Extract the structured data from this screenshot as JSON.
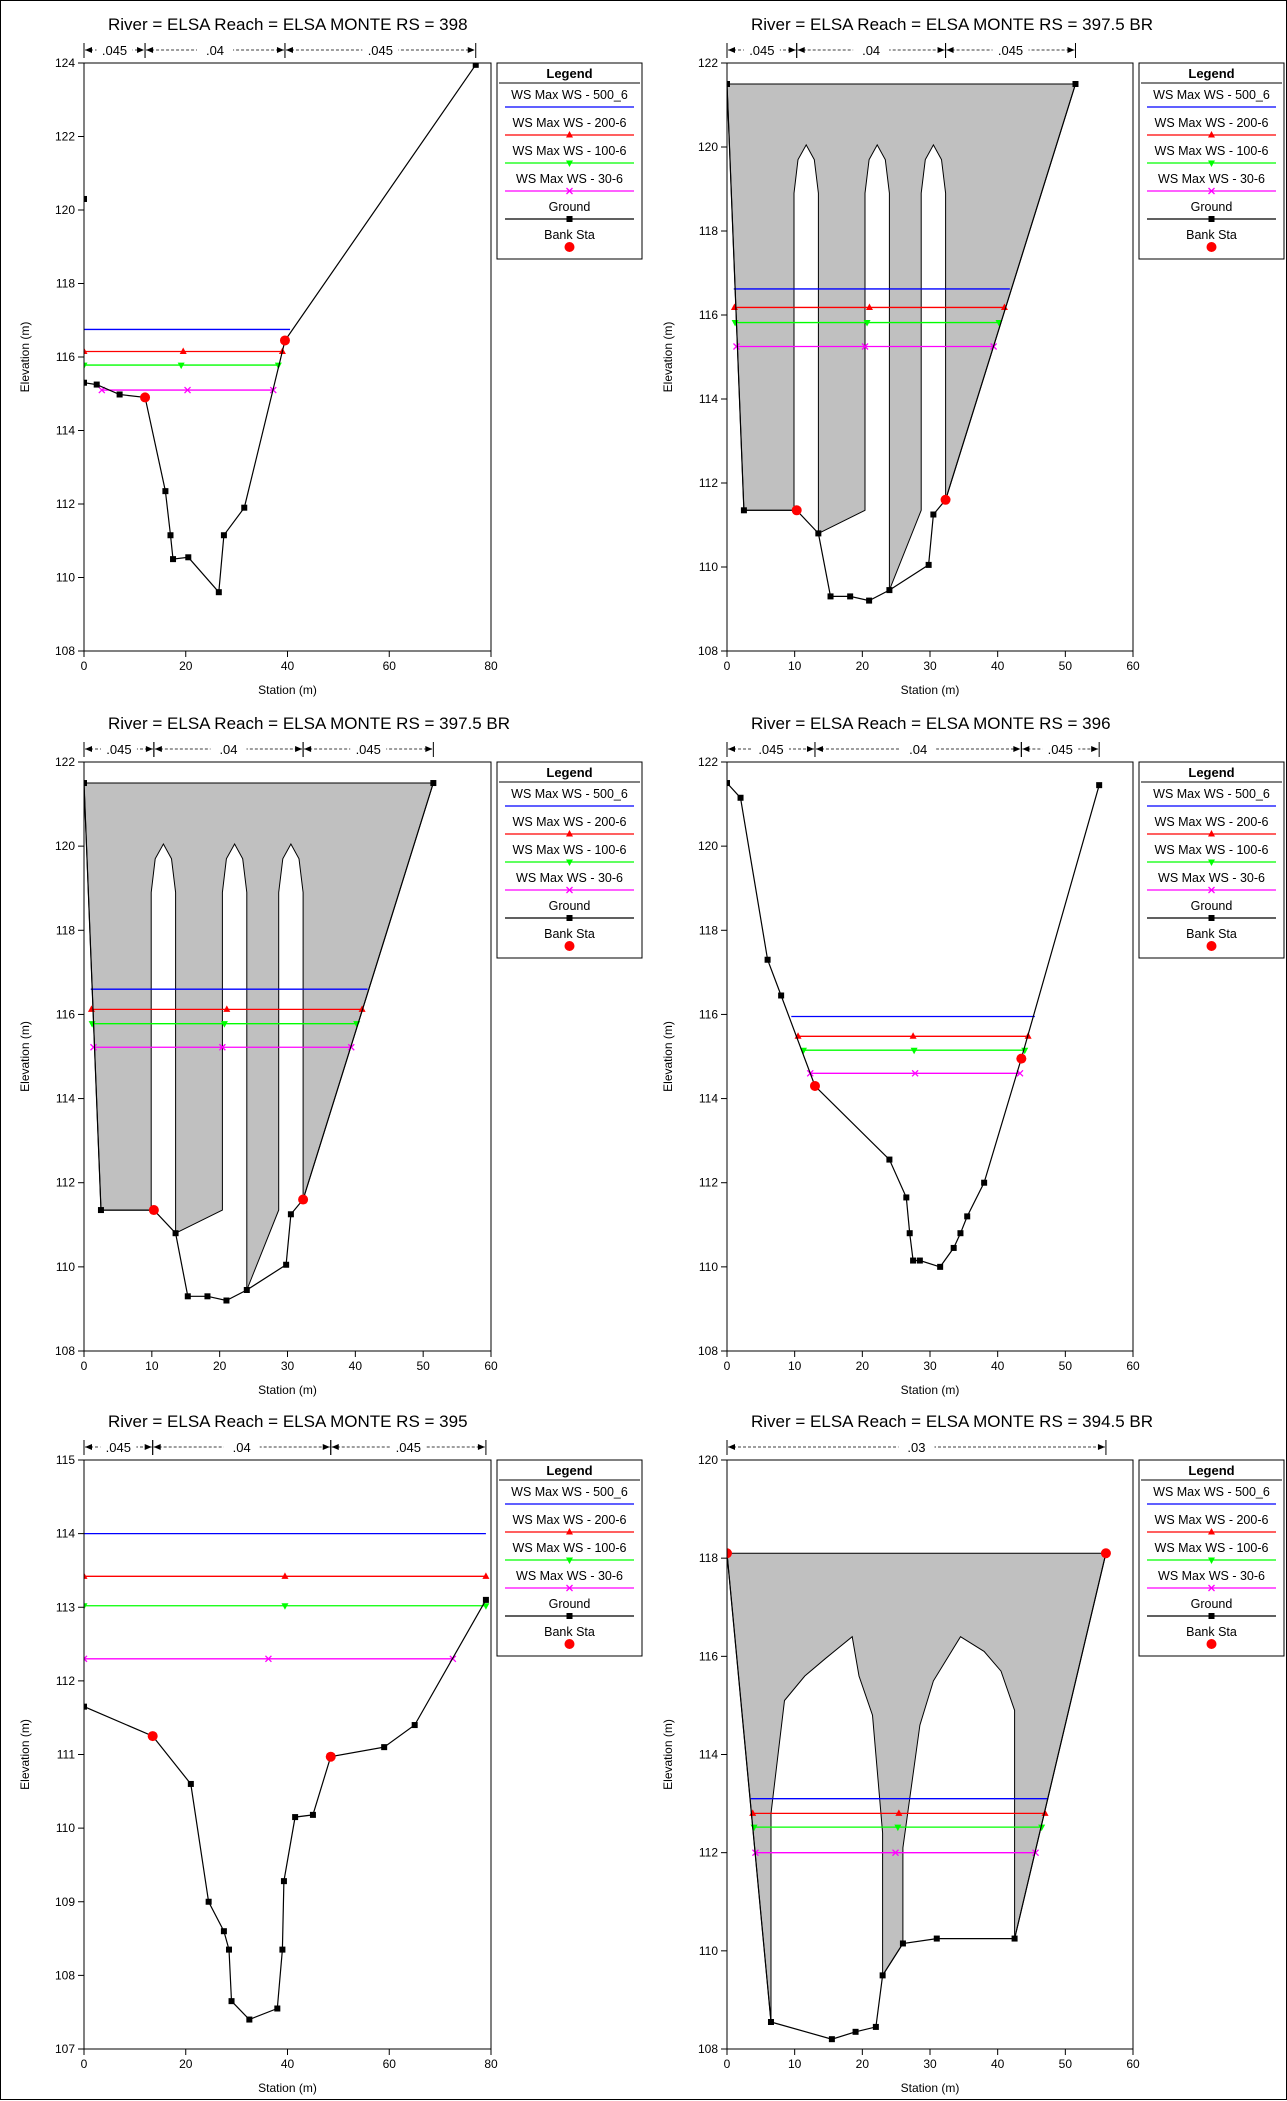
{
  "common": {
    "xlabel": "Station (m)",
    "ylabel": "Elevation (m)",
    "legend_title": "Legend",
    "legend_items": [
      {
        "label": "WS Max WS - 500_6",
        "color": "#0000ff",
        "marker": "none"
      },
      {
        "label": "WS Max WS - 200-6",
        "color": "#ff0000",
        "marker": "triangle-up"
      },
      {
        "label": "WS Max WS - 100-6",
        "color": "#00ff00",
        "marker": "triangle-down"
      },
      {
        "label": "WS Max WS - 30-6",
        "color": "#ff00ff",
        "marker": "x"
      },
      {
        "label": "Ground",
        "color": "#000000",
        "marker": "square"
      },
      {
        "label": "Bank Sta",
        "color": "#ff0000",
        "marker": "circle"
      }
    ],
    "colors": {
      "fill": "#c0c0c0",
      "ground": "#000000",
      "bank": "#ff0000"
    }
  },
  "chart_data": [
    {
      "type": "line",
      "title": "River = ELSA    Reach = ELSA MONTE        RS = 398",
      "xlim": [
        0,
        80
      ],
      "ylim": [
        108,
        124
      ],
      "xticks": [
        0,
        20,
        40,
        60,
        80
      ],
      "yticks": [
        108,
        110,
        112,
        114,
        116,
        118,
        120,
        122,
        124
      ],
      "manning": [
        {
          "from": 0,
          "to": 12,
          "n": ".045"
        },
        {
          "from": 12,
          "to": 39.5,
          "n": ".04"
        },
        {
          "from": 39.5,
          "to": 77,
          "n": ".045"
        }
      ],
      "ground": [
        [
          0,
          115.3
        ],
        [
          2.5,
          115.25
        ],
        [
          7,
          114.98
        ],
        [
          12,
          114.9
        ],
        [
          16,
          112.35
        ],
        [
          17,
          111.15
        ],
        [
          17.5,
          110.5
        ],
        [
          20.5,
          110.55
        ],
        [
          26.5,
          109.6
        ],
        [
          27.5,
          111.15
        ],
        [
          31.5,
          111.9
        ],
        [
          39.5,
          116.45
        ],
        [
          77,
          123.95
        ]
      ],
      "extra_points": [
        [
          0,
          120.3
        ]
      ],
      "fill_polygons": [],
      "bank": [
        [
          12,
          114.9
        ],
        [
          39.5,
          116.45
        ]
      ],
      "ws": [
        {
          "name": "WS Max WS - 500_6",
          "elev": 116.75,
          "from": 0,
          "to": 40.5
        },
        {
          "name": "WS Max WS - 200-6",
          "elev": 116.15,
          "from": 0,
          "to": 39.0
        },
        {
          "name": "WS Max WS - 100-6",
          "elev": 115.78,
          "from": 0,
          "to": 38.2
        },
        {
          "name": "WS Max WS - 30-6",
          "elev": 115.1,
          "from": 3.5,
          "to": 37.2
        }
      ]
    },
    {
      "type": "line",
      "title": "River = ELSA    Reach = ELSA MONTE        RS = 397.5    BR",
      "xlim": [
        0,
        60
      ],
      "ylim": [
        108,
        122
      ],
      "xticks": [
        0,
        10,
        20,
        30,
        40,
        50,
        60
      ],
      "yticks": [
        108,
        110,
        112,
        114,
        116,
        118,
        120,
        122
      ],
      "manning": [
        {
          "from": 0,
          "to": 10.3,
          "n": ".045"
        },
        {
          "from": 10.3,
          "to": 32.3,
          "n": ".04"
        },
        {
          "from": 32.3,
          "to": 51.5,
          "n": ".045"
        }
      ],
      "ground": [
        [
          0,
          121.5
        ],
        [
          2.5,
          111.35
        ],
        [
          10.3,
          111.35
        ],
        [
          13.5,
          110.8
        ],
        [
          15.3,
          109.3
        ],
        [
          18.2,
          109.3
        ],
        [
          21,
          109.2
        ],
        [
          24,
          109.45
        ],
        [
          29.8,
          110.05
        ],
        [
          30.5,
          111.25
        ],
        [
          32.3,
          111.6
        ],
        [
          51.5,
          121.5
        ]
      ],
      "extra_points": [],
      "fill_polygons": [
        [
          [
            0,
            121.5
          ],
          [
            51.5,
            121.5
          ],
          [
            32.3,
            111.6
          ],
          [
            32.3,
            118.9
          ],
          [
            31.7,
            119.7
          ],
          [
            30.5,
            120.05
          ],
          [
            29.3,
            119.7
          ],
          [
            28.7,
            118.9
          ],
          [
            28.7,
            111.35
          ],
          [
            24,
            109.45
          ],
          [
            24,
            118.9
          ],
          [
            23.4,
            119.7
          ],
          [
            22.2,
            120.05
          ],
          [
            21,
            119.7
          ],
          [
            20.4,
            118.9
          ],
          [
            20.4,
            111.35
          ],
          [
            13.5,
            110.8
          ],
          [
            13.5,
            118.9
          ],
          [
            12.9,
            119.7
          ],
          [
            11.7,
            120.05
          ],
          [
            10.5,
            119.7
          ],
          [
            9.9,
            118.9
          ],
          [
            9.9,
            111.35
          ],
          [
            2.5,
            111.35
          ]
        ]
      ],
      "bank": [
        [
          10.3,
          111.35
        ],
        [
          32.3,
          111.6
        ]
      ],
      "ws": [
        {
          "name": "WS Max WS - 500_6",
          "elev": 116.62,
          "from": 1.0,
          "to": 41.8
        },
        {
          "name": "WS Max WS - 200-6",
          "elev": 116.18,
          "from": 1.1,
          "to": 41.0
        },
        {
          "name": "WS Max WS - 100-6",
          "elev": 115.82,
          "from": 1.2,
          "to": 40.2
        },
        {
          "name": "WS Max WS - 30-6",
          "elev": 115.25,
          "from": 1.4,
          "to": 39.4
        }
      ]
    },
    {
      "type": "line",
      "title": "River = ELSA    Reach = ELSA MONTE        RS = 397.5    BR",
      "xlim": [
        0,
        60
      ],
      "ylim": [
        108,
        122
      ],
      "xticks": [
        0,
        10,
        20,
        30,
        40,
        50,
        60
      ],
      "yticks": [
        108,
        110,
        112,
        114,
        116,
        118,
        120,
        122
      ],
      "manning": [
        {
          "from": 0,
          "to": 10.3,
          "n": ".045"
        },
        {
          "from": 10.3,
          "to": 32.3,
          "n": ".04"
        },
        {
          "from": 32.3,
          "to": 51.5,
          "n": ".045"
        }
      ],
      "ground": [
        [
          0,
          121.5
        ],
        [
          2.5,
          111.35
        ],
        [
          10.3,
          111.35
        ],
        [
          13.5,
          110.8
        ],
        [
          15.3,
          109.3
        ],
        [
          18.2,
          109.3
        ],
        [
          21,
          109.2
        ],
        [
          24,
          109.45
        ],
        [
          29.8,
          110.05
        ],
        [
          30.5,
          111.25
        ],
        [
          32.3,
          111.6
        ],
        [
          51.5,
          121.5
        ]
      ],
      "extra_points": [],
      "fill_polygons": [
        [
          [
            0,
            121.5
          ],
          [
            51.5,
            121.5
          ],
          [
            32.3,
            111.6
          ],
          [
            32.3,
            118.9
          ],
          [
            31.7,
            119.7
          ],
          [
            30.5,
            120.05
          ],
          [
            29.3,
            119.7
          ],
          [
            28.7,
            118.9
          ],
          [
            28.7,
            111.35
          ],
          [
            24,
            109.45
          ],
          [
            24,
            118.9
          ],
          [
            23.4,
            119.7
          ],
          [
            22.2,
            120.05
          ],
          [
            21,
            119.7
          ],
          [
            20.4,
            118.9
          ],
          [
            20.4,
            111.35
          ],
          [
            13.5,
            110.8
          ],
          [
            13.5,
            118.9
          ],
          [
            12.9,
            119.7
          ],
          [
            11.7,
            120.05
          ],
          [
            10.5,
            119.7
          ],
          [
            9.9,
            118.9
          ],
          [
            9.9,
            111.35
          ],
          [
            2.5,
            111.35
          ]
        ]
      ],
      "bank": [
        [
          10.3,
          111.35
        ],
        [
          32.3,
          111.6
        ]
      ],
      "ws": [
        {
          "name": "WS Max WS - 500_6",
          "elev": 116.6,
          "from": 1.0,
          "to": 41.8
        },
        {
          "name": "WS Max WS - 200-6",
          "elev": 116.12,
          "from": 1.1,
          "to": 41.0
        },
        {
          "name": "WS Max WS - 100-6",
          "elev": 115.78,
          "from": 1.2,
          "to": 40.2
        },
        {
          "name": "WS Max WS - 30-6",
          "elev": 115.22,
          "from": 1.4,
          "to": 39.4
        }
      ]
    },
    {
      "type": "line",
      "title": "River = ELSA    Reach = ELSA MONTE        RS = 396",
      "xlim": [
        0,
        60
      ],
      "ylim": [
        108,
        122
      ],
      "xticks": [
        0,
        10,
        20,
        30,
        40,
        50,
        60
      ],
      "yticks": [
        108,
        110,
        112,
        114,
        116,
        118,
        120,
        122
      ],
      "manning": [
        {
          "from": 0,
          "to": 13,
          "n": ".045"
        },
        {
          "from": 13,
          "to": 43.5,
          "n": ".04"
        },
        {
          "from": 43.5,
          "to": 55,
          "n": ".045"
        }
      ],
      "ground": [
        [
          0,
          121.5
        ],
        [
          2,
          121.15
        ],
        [
          6,
          117.3
        ],
        [
          8,
          116.45
        ],
        [
          13,
          114.3
        ],
        [
          24,
          112.55
        ],
        [
          26.5,
          111.65
        ],
        [
          27,
          110.8
        ],
        [
          27.5,
          110.15
        ],
        [
          28.5,
          110.15
        ],
        [
          31.5,
          110.0
        ],
        [
          33.5,
          110.45
        ],
        [
          34.5,
          110.8
        ],
        [
          35.5,
          111.2
        ],
        [
          38,
          112.0
        ],
        [
          43.5,
          114.95
        ],
        [
          55,
          121.45
        ]
      ],
      "extra_points": [],
      "fill_polygons": [],
      "bank": [
        [
          13,
          114.3
        ],
        [
          43.5,
          114.95
        ]
      ],
      "ws": [
        {
          "name": "WS Max WS - 500_6",
          "elev": 115.95,
          "from": 9.5,
          "to": 45.5
        },
        {
          "name": "WS Max WS - 200-6",
          "elev": 115.48,
          "from": 10.5,
          "to": 44.5
        },
        {
          "name": "WS Max WS - 100-6",
          "elev": 115.15,
          "from": 11.3,
          "to": 44.0
        },
        {
          "name": "WS Max WS - 30-6",
          "elev": 114.6,
          "from": 12.3,
          "to": 43.3
        }
      ]
    },
    {
      "type": "line",
      "title": "River = ELSA    Reach = ELSA MONTE        RS = 395",
      "xlim": [
        0,
        80
      ],
      "ylim": [
        107,
        115
      ],
      "xticks": [
        0,
        20,
        40,
        60,
        80
      ],
      "yticks": [
        107,
        108,
        109,
        110,
        111,
        112,
        113,
        114,
        115
      ],
      "manning": [
        {
          "from": 0,
          "to": 13.5,
          "n": ".045"
        },
        {
          "from": 13.5,
          "to": 48.5,
          "n": ".04"
        },
        {
          "from": 48.5,
          "to": 79,
          "n": ".045"
        }
      ],
      "ground": [
        [
          0,
          111.65
        ],
        [
          13.5,
          111.25
        ],
        [
          21,
          110.6
        ],
        [
          24.5,
          109.0
        ],
        [
          27.5,
          108.6
        ],
        [
          28.5,
          108.35
        ],
        [
          29,
          107.65
        ],
        [
          32.5,
          107.4
        ],
        [
          38,
          107.55
        ],
        [
          39,
          108.35
        ],
        [
          39.3,
          109.28
        ],
        [
          41.5,
          110.15
        ],
        [
          45,
          110.18
        ],
        [
          48.5,
          110.97
        ],
        [
          59,
          111.1
        ],
        [
          65,
          111.4
        ],
        [
          79,
          113.1
        ]
      ],
      "extra_points": [],
      "fill_polygons": [],
      "bank": [
        [
          13.5,
          111.25
        ],
        [
          48.5,
          110.97
        ]
      ],
      "ws": [
        {
          "name": "WS Max WS - 500_6",
          "elev": 114.0,
          "from": 0,
          "to": 79
        },
        {
          "name": "WS Max WS - 200-6",
          "elev": 113.42,
          "from": 0,
          "to": 79
        },
        {
          "name": "WS Max WS - 100-6",
          "elev": 113.02,
          "from": 0,
          "to": 79
        },
        {
          "name": "WS Max WS - 30-6",
          "elev": 112.3,
          "from": 0,
          "to": 72.5
        }
      ]
    },
    {
      "type": "line",
      "title": "River = ELSA    Reach = ELSA MONTE        RS = 394.5    BR",
      "xlim": [
        0,
        60
      ],
      "ylim": [
        108,
        120
      ],
      "xticks": [
        0,
        10,
        20,
        30,
        40,
        50,
        60
      ],
      "yticks": [
        108,
        110,
        112,
        114,
        116,
        118,
        120
      ],
      "manning": [
        {
          "from": 0,
          "to": 56,
          "n": ".03"
        }
      ],
      "ground": [
        [
          0,
          118.1
        ],
        [
          6.5,
          108.55
        ],
        [
          15.5,
          108.2
        ],
        [
          19,
          108.35
        ],
        [
          22,
          108.45
        ],
        [
          23,
          109.5
        ],
        [
          26,
          110.15
        ],
        [
          31,
          110.25
        ],
        [
          42.5,
          110.25
        ],
        [
          56,
          118.1
        ]
      ],
      "extra_points": [],
      "fill_polygons": [
        [
          [
            0,
            118.1
          ],
          [
            56,
            118.1
          ],
          [
            42.5,
            110.25
          ],
          [
            42.5,
            114.9
          ],
          [
            40.5,
            115.7
          ],
          [
            38,
            116.1
          ],
          [
            34.5,
            116.4
          ],
          [
            30.5,
            115.5
          ],
          [
            28.5,
            114.6
          ],
          [
            26,
            112.1
          ],
          [
            26,
            110.15
          ],
          [
            23,
            109.5
          ],
          [
            23,
            112.4
          ],
          [
            21.5,
            114.8
          ],
          [
            19.5,
            115.6
          ],
          [
            18.5,
            116.4
          ],
          [
            14.5,
            115.95
          ],
          [
            11.5,
            115.6
          ],
          [
            8.5,
            115.1
          ],
          [
            6.5,
            112.8
          ],
          [
            6.5,
            108.55
          ]
        ]
      ],
      "bank": [
        [
          0,
          118.1
        ],
        [
          56,
          118.1
        ]
      ],
      "ws": [
        {
          "name": "WS Max WS - 500_6",
          "elev": 113.1,
          "from": 3.5,
          "to": 47.5
        },
        {
          "name": "WS Max WS - 200-6",
          "elev": 112.8,
          "from": 3.8,
          "to": 47.0
        },
        {
          "name": "WS Max WS - 100-6",
          "elev": 112.52,
          "from": 4.0,
          "to": 46.5
        },
        {
          "name": "WS Max WS - 30-6",
          "elev": 112.0,
          "from": 4.2,
          "to": 45.6
        }
      ]
    }
  ]
}
